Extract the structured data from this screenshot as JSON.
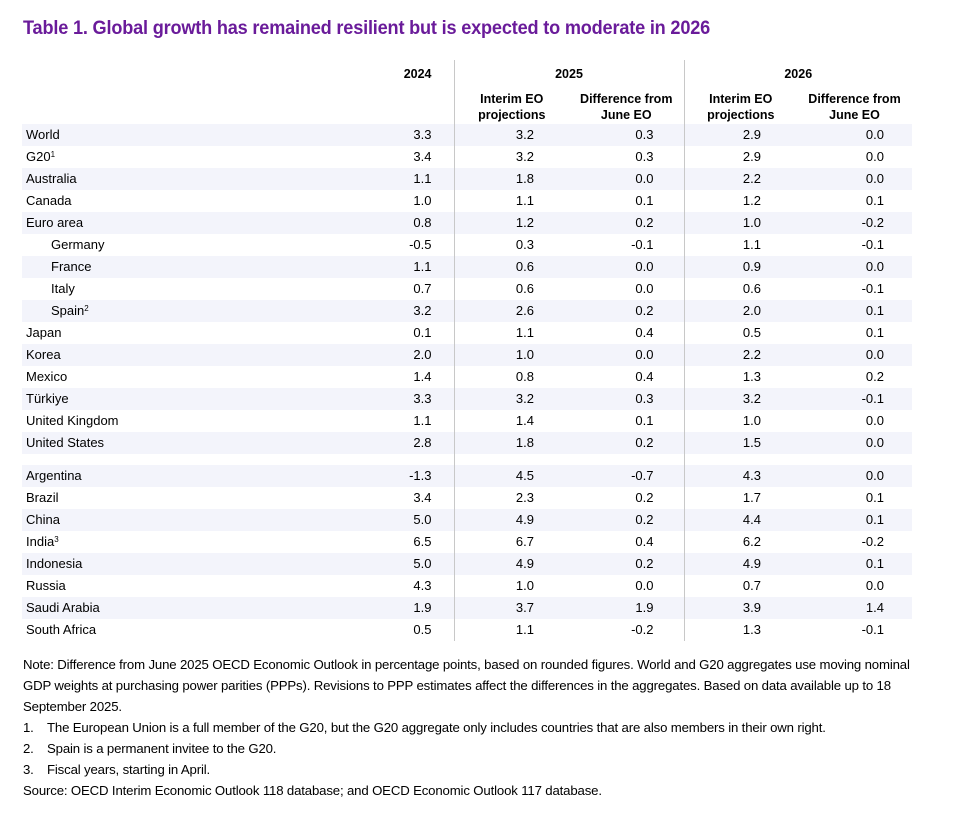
{
  "title": "Table 1. Global growth has remained resilient but is expected to moderate in 2026",
  "colors": {
    "title": "#6a1b9a",
    "band": "#f3f4fb",
    "separator": "#c8c8c8"
  },
  "header": {
    "years": [
      "2024",
      "2025",
      "2026"
    ],
    "sub": {
      "interim_line1": "Interim EO",
      "interim_line2": "projections",
      "diff_line1": "Difference from",
      "diff_line2": "June EO"
    }
  },
  "rows": [
    {
      "name": "World",
      "sup": "",
      "v2024": "3.3",
      "i2025": "3.2",
      "d2025": "0.3",
      "i2026": "2.9",
      "d2026": "0.0"
    },
    {
      "name": "G20",
      "sup": "1",
      "v2024": "3.4",
      "i2025": "3.2",
      "d2025": "0.3",
      "i2026": "2.9",
      "d2026": "0.0"
    },
    {
      "name": "Australia",
      "sup": "",
      "v2024": "1.1",
      "i2025": "1.8",
      "d2025": "0.0",
      "i2026": "2.2",
      "d2026": "0.0"
    },
    {
      "name": "Canada",
      "sup": "",
      "v2024": "1.0",
      "i2025": "1.1",
      "d2025": "0.1",
      "i2026": "1.2",
      "d2026": "0.1"
    },
    {
      "name": "Euro area",
      "sup": "",
      "v2024": "0.8",
      "i2025": "1.2",
      "d2025": "0.2",
      "i2026": "1.0",
      "d2026": "-0.2"
    },
    {
      "name": "Germany",
      "sup": "",
      "indent": true,
      "v2024": "-0.5",
      "i2025": "0.3",
      "d2025": "-0.1",
      "i2026": "1.1",
      "d2026": "-0.1"
    },
    {
      "name": "France",
      "sup": "",
      "indent": true,
      "v2024": "1.1",
      "i2025": "0.6",
      "d2025": "0.0",
      "i2026": "0.9",
      "d2026": "0.0"
    },
    {
      "name": "Italy",
      "sup": "",
      "indent": true,
      "v2024": "0.7",
      "i2025": "0.6",
      "d2025": "0.0",
      "i2026": "0.6",
      "d2026": "-0.1"
    },
    {
      "name": "Spain",
      "sup": "2",
      "indent": true,
      "v2024": "3.2",
      "i2025": "2.6",
      "d2025": "0.2",
      "i2026": "2.0",
      "d2026": "0.1"
    },
    {
      "name": "Japan",
      "sup": "",
      "v2024": "0.1",
      "i2025": "1.1",
      "d2025": "0.4",
      "i2026": "0.5",
      "d2026": "0.1"
    },
    {
      "name": "Korea",
      "sup": "",
      "v2024": "2.0",
      "i2025": "1.0",
      "d2025": "0.0",
      "i2026": "2.2",
      "d2026": "0.0"
    },
    {
      "name": "Mexico",
      "sup": "",
      "v2024": "1.4",
      "i2025": "0.8",
      "d2025": "0.4",
      "i2026": "1.3",
      "d2026": "0.2"
    },
    {
      "name": "Türkiye",
      "sup": "",
      "v2024": "3.3",
      "i2025": "3.2",
      "d2025": "0.3",
      "i2026": "3.2",
      "d2026": "-0.1"
    },
    {
      "name": "United Kingdom",
      "sup": "",
      "v2024": "1.1",
      "i2025": "1.4",
      "d2025": "0.1",
      "i2026": "1.0",
      "d2026": "0.0"
    },
    {
      "name": "United States",
      "sup": "",
      "v2024": "2.8",
      "i2025": "1.8",
      "d2025": "0.2",
      "i2026": "1.5",
      "d2026": "0.0"
    },
    {
      "spacer": true
    },
    {
      "name": "Argentina",
      "sup": "",
      "v2024": "-1.3",
      "i2025": "4.5",
      "d2025": "-0.7",
      "i2026": "4.3",
      "d2026": "0.0"
    },
    {
      "name": "Brazil",
      "sup": "",
      "v2024": "3.4",
      "i2025": "2.3",
      "d2025": "0.2",
      "i2026": "1.7",
      "d2026": "0.1"
    },
    {
      "name": "China",
      "sup": "",
      "v2024": "5.0",
      "i2025": "4.9",
      "d2025": "0.2",
      "i2026": "4.4",
      "d2026": "0.1"
    },
    {
      "name": "India",
      "sup": "3",
      "v2024": "6.5",
      "i2025": "6.7",
      "d2025": "0.4",
      "i2026": "6.2",
      "d2026": "-0.2"
    },
    {
      "name": "Indonesia",
      "sup": "",
      "v2024": "5.0",
      "i2025": "4.9",
      "d2025": "0.2",
      "i2026": "4.9",
      "d2026": "0.1"
    },
    {
      "name": "Russia",
      "sup": "",
      "v2024": "4.3",
      "i2025": "1.0",
      "d2025": "0.0",
      "i2026": "0.7",
      "d2026": "0.0"
    },
    {
      "name": "Saudi Arabia",
      "sup": "",
      "v2024": "1.9",
      "i2025": "3.7",
      "d2025": "1.9",
      "i2026": "3.9",
      "d2026": "1.4"
    },
    {
      "name": "South Africa",
      "sup": "",
      "v2024": "0.5",
      "i2025": "1.1",
      "d2025": "-0.2",
      "i2026": "1.3",
      "d2026": "-0.1"
    }
  ],
  "notes": {
    "note": "Note: Difference from June 2025 OECD Economic Outlook in percentage points, based on rounded figures. World and G20 aggregates use moving nominal GDP weights at purchasing power parities (PPPs). Revisions to PPP estimates affect the differences in the aggregates. Based on data available up to 18 September 2025.",
    "footnotes": [
      {
        "num": "1.",
        "text": "The European Union is a full member of the G20, but the G20 aggregate only includes countries that are also members in their own right."
      },
      {
        "num": "2.",
        "text": "Spain is a permanent invitee to the G20."
      },
      {
        "num": "3.",
        "text": "Fiscal years, starting in April."
      }
    ],
    "source": "Source: OECD Interim Economic Outlook 118 database; and OECD Economic Outlook 117 database."
  }
}
